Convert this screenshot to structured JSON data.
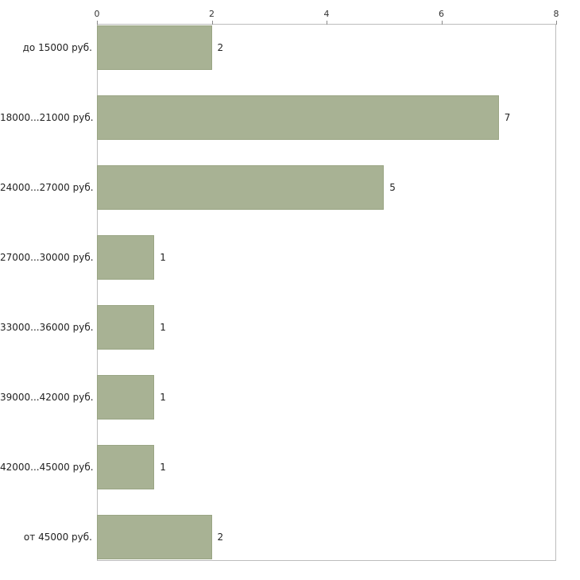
{
  "chart_data": {
    "type": "bar",
    "orientation": "horizontal",
    "title": "",
    "xlabel": "",
    "ylabel": "",
    "categories": [
      "до 15000 руб.",
      "18000...21000 руб.",
      "24000...27000 руб.",
      "27000...30000 руб.",
      "33000...36000 руб.",
      "39000...42000 руб.",
      "42000...45000 руб.",
      "от 45000 руб."
    ],
    "values": [
      2,
      7,
      5,
      1,
      1,
      1,
      1,
      2
    ],
    "value_labels": [
      "2",
      "7",
      "5",
      "1",
      "1",
      "1",
      "1",
      "2"
    ],
    "x_ticks": [
      0,
      2,
      4,
      6,
      8
    ],
    "x_tick_labels": [
      "0",
      "2",
      "4",
      "6",
      "8"
    ],
    "xlim": [
      0,
      8
    ],
    "grid": false,
    "legend": false,
    "axis_position": "top",
    "colors": {
      "bar_fill": "#a8b294",
      "bar_border": "#9aa584",
      "plot_border": "#bcbcbc",
      "tick": "#8a8a8a",
      "text": "#222222"
    }
  }
}
